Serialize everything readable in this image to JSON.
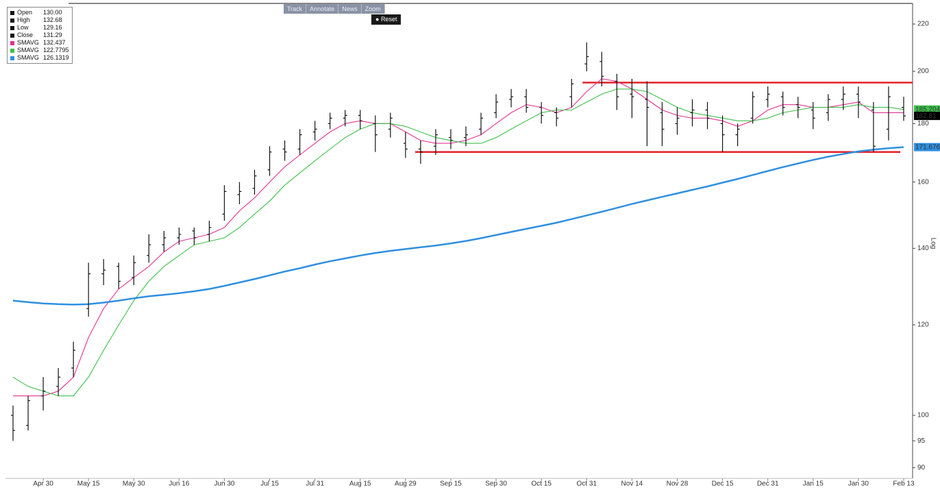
{
  "toolbar": {
    "buttons": [
      "Track",
      "Annotate",
      "News",
      "Zoom"
    ],
    "reset": "Reset"
  },
  "chart_data": {
    "type": "ohlc",
    "categories": [
      null,
      null,
      "Apr 30",
      null,
      null,
      "May 15",
      null,
      null,
      "May 30",
      null,
      null,
      "Jun 16",
      null,
      null,
      "Jun 30",
      null,
      null,
      "Jul 15",
      null,
      null,
      "Jul 31",
      null,
      null,
      "Aug 15",
      null,
      null,
      "Aug 29",
      null,
      null,
      "Sep 15",
      null,
      null,
      "Sep 30",
      null,
      null,
      "Oct 15",
      null,
      null,
      "Oct 31",
      null,
      null,
      "Nov 14",
      null,
      null,
      "Nov 28",
      null,
      null,
      "Dec 15",
      null,
      null,
      "Dec 31",
      null,
      null,
      "Jan 15",
      null,
      null,
      "Jan 30",
      null,
      null,
      "Feb 13"
    ],
    "open": [
      100,
      98,
      104,
      106,
      110,
      124,
      133,
      135,
      132,
      138,
      141,
      143,
      145,
      144,
      150,
      156,
      158,
      164,
      171,
      171,
      177,
      180,
      182,
      183,
      180,
      178,
      173,
      171,
      172,
      175,
      175,
      178,
      184,
      189,
      190,
      186,
      184,
      190,
      203,
      204,
      196,
      191,
      189,
      184,
      180,
      184,
      185,
      180,
      176,
      182,
      189,
      190,
      187,
      185,
      184,
      189,
      191,
      185,
      178,
      186
    ],
    "high": [
      102,
      104,
      108,
      110,
      116,
      136,
      137,
      136,
      138,
      144,
      145,
      146,
      146,
      148,
      159,
      160,
      164,
      172,
      174,
      178,
      181,
      184,
      185,
      185,
      183,
      184,
      177,
      174,
      178,
      178,
      179,
      184,
      191,
      193,
      193,
      188,
      186,
      197,
      212,
      208,
      199,
      197,
      196,
      188,
      186,
      189,
      188,
      183,
      180,
      192,
      194,
      192,
      190,
      188,
      191,
      194,
      194,
      188,
      194,
      190
    ],
    "low": [
      95,
      97,
      101,
      104,
      108,
      122,
      130,
      129,
      130,
      136,
      139,
      141,
      141,
      142,
      148,
      153,
      156,
      162,
      167,
      169,
      174,
      178,
      179,
      178,
      170,
      175,
      168,
      166,
      169,
      171,
      172,
      176,
      182,
      186,
      184,
      180,
      179,
      186,
      200,
      194,
      185,
      182,
      172,
      172,
      176,
      179,
      178,
      170,
      172,
      180,
      186,
      183,
      182,
      178,
      181,
      185,
      182,
      170,
      174,
      181
    ],
    "close": [
      97,
      103,
      105,
      108,
      114,
      133,
      134,
      131,
      136,
      141,
      143,
      144,
      143,
      146,
      157,
      157,
      162,
      170,
      170,
      176,
      178,
      182,
      183,
      181,
      176,
      182,
      171,
      170,
      176,
      174,
      176,
      182,
      188,
      190,
      186,
      183,
      182,
      195,
      206,
      198,
      190,
      190,
      186,
      178,
      182,
      185,
      182,
      176,
      178,
      190,
      191,
      186,
      186,
      182,
      189,
      191,
      188,
      172,
      190,
      182.81
    ],
    "bar_color": "#111111",
    "ohlc_legend": [
      {
        "label": "Open",
        "value": "130.00"
      },
      {
        "label": "High",
        "value": "132.68"
      },
      {
        "label": "Low",
        "value": "129.16"
      },
      {
        "label": "Close",
        "value": "131.29"
      }
    ],
    "series": [
      {
        "name": "SMAVG",
        "legend_value": "132.437",
        "color": "#e0338f",
        "values": [
          104,
          104,
          104,
          105,
          108,
          117,
          124,
          129,
          132,
          135,
          139,
          142,
          143,
          144,
          146,
          151,
          155,
          160,
          165,
          169,
          173,
          177,
          180,
          181,
          180,
          180,
          177,
          174,
          173,
          173,
          174,
          176,
          180,
          184,
          187,
          186,
          184,
          186,
          192,
          197,
          196,
          193,
          189,
          185,
          183,
          182,
          182,
          181,
          179,
          181,
          185,
          187,
          187,
          186,
          186,
          187,
          188,
          184,
          184,
          184
        ]
      },
      {
        "name": "SMAVG",
        "legend_value": "122.7795",
        "color": "#3cbf4a",
        "last_label": "185.204",
        "values": [
          108,
          106,
          105,
          104,
          104,
          108,
          114,
          120,
          126,
          131,
          135,
          138,
          141,
          142,
          143,
          146,
          150,
          154,
          159,
          163,
          167,
          171,
          175,
          178,
          180,
          180,
          179,
          177,
          175,
          174,
          173,
          173,
          175,
          178,
          181,
          184,
          185,
          185,
          188,
          191,
          193,
          193,
          192,
          189,
          186,
          184,
          183,
          182,
          181,
          181,
          182,
          184,
          185,
          186,
          186,
          186,
          187,
          186,
          186,
          185.204
        ]
      },
      {
        "name": "SMAVG",
        "legend_value": "126.1319",
        "color": "#2f8fe0",
        "last_label": "171.676",
        "values": [
          126,
          125.6,
          125.3,
          125.1,
          125,
          125.1,
          125.5,
          126,
          126.6,
          127.1,
          127.5,
          127.9,
          128.4,
          129,
          129.8,
          130.7,
          131.6,
          132.6,
          133.6,
          134.5,
          135.5,
          136.4,
          137.2,
          138,
          138.7,
          139.3,
          139.8,
          140.3,
          140.8,
          141.4,
          142.1,
          142.9,
          143.8,
          144.7,
          145.6,
          146.5,
          147.4,
          148.5,
          149.6,
          150.7,
          151.9,
          153.1,
          154.2,
          155.3,
          156.4,
          157.5,
          158.6,
          159.8,
          161,
          162.3,
          163.6,
          164.9,
          166.1,
          167.3,
          168.4,
          169.3,
          170.2,
          170.8,
          171.3,
          171.676
        ]
      }
    ],
    "levels": [
      {
        "value": 195.5,
        "color": "#e0202a"
      },
      {
        "value": 170,
        "color": "#e0202a"
      }
    ],
    "y_scale": "log",
    "y_label": "Log",
    "ylim": [
      88.8,
      229
    ],
    "yticks": [
      90,
      95,
      100,
      120,
      140,
      160,
      180,
      200,
      220
    ]
  }
}
